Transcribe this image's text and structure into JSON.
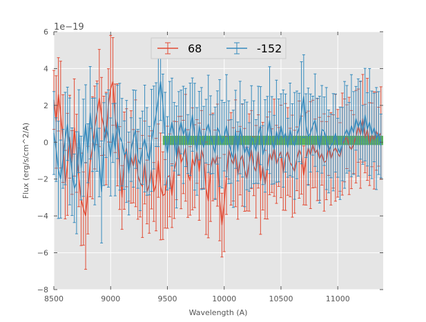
{
  "chart_data": {
    "type": "line",
    "title": "",
    "xlabel": "Wavelength (A)",
    "ylabel": "Flux (erg/s/cm^2/A)",
    "offset_text": "1e−19",
    "xlim": [
      8500,
      11400
    ],
    "ylim": [
      -8,
      6
    ],
    "xticks": [
      8500,
      9000,
      9500,
      10000,
      10500,
      11000
    ],
    "xtick_labels": [
      "8500",
      "9000",
      "9500",
      "10000",
      "10500",
      "11000"
    ],
    "yticks": [
      -8,
      -6,
      -4,
      -2,
      0,
      2,
      4,
      6
    ],
    "ytick_labels": [
      "−8",
      "−6",
      "−4",
      "−2",
      "0",
      "2",
      "4",
      "6"
    ],
    "grid": true,
    "legend_position": "top-center",
    "colors": {
      "background": "#e5e5e5",
      "grid": "#ffffff",
      "band": "#2ca02c",
      "series_68": "#e24a33",
      "series_m152": "#348abd"
    },
    "band": {
      "x_start": 9460,
      "x_end": 11400,
      "y_low": -0.15,
      "y_high": 0.35,
      "label": ""
    },
    "series": [
      {
        "name": "68",
        "color": "#e24a33",
        "x_start": 8500,
        "x_step": 20,
        "values": [
          2.3,
          1.1,
          2.6,
          1.5,
          0.2,
          -2.3,
          -1.2,
          0.3,
          -1.1,
          0.8,
          -0.6,
          -1.9,
          -3.1,
          -3.6,
          -4.0,
          -2.6,
          -1.1,
          -0.3,
          0.8,
          1.6,
          2.4,
          1.4,
          0.9,
          0.2,
          2.0,
          2.9,
          3.3,
          1.3,
          0.4,
          -1.4,
          -3.0,
          -1.0,
          -0.3,
          -1.6,
          -0.8,
          -1.3,
          -0.6,
          -1.8,
          -2.2,
          -2.4,
          -1.1,
          -2.7,
          -2.3,
          -1.5,
          -2.7,
          -2.3,
          -1.0,
          -2.4,
          -2.9,
          -2.8,
          -1.9,
          -1.8,
          -2.9,
          -1.5,
          -1.0,
          -0.2,
          -1.1,
          -0.8,
          -0.3,
          -1.7,
          -2.1,
          -0.9,
          -1.3,
          -0.5,
          -1.6,
          -0.4,
          -0.9,
          -2.5,
          -3.2,
          -1.4,
          -0.8,
          -1.2,
          -0.7,
          -3.1,
          -4.5,
          -3.3,
          -1.8,
          -0.4,
          -0.9,
          -1.2,
          -0.6,
          -1.8,
          -1.0,
          -0.7,
          -1.5,
          -2.0,
          -1.1,
          -0.4,
          -1.3,
          -1.6,
          -0.5,
          -2.1,
          -1.3,
          -2.3,
          -1.4,
          -0.6,
          -1.0,
          -0.3,
          -1.2,
          -0.8,
          -0.5,
          -1.7,
          -0.8,
          -0.5,
          -1.1,
          -1.3,
          -1.6,
          -0.9,
          -0.4,
          -0.7,
          -1.8,
          -0.9,
          -0.3,
          -0.7,
          -0.1,
          -0.6,
          -0.4,
          -0.9,
          -0.6,
          -1.1,
          -1.0,
          -0.2,
          -0.9,
          -0.5,
          -0.3,
          -0.6,
          -0.8,
          -0.1,
          0.1,
          0.3,
          -0.2,
          -0.4,
          -0.1,
          0.3,
          0.9,
          0.4,
          1.3,
          0.2,
          0.7,
          -0.1,
          0.4,
          0.1,
          0.6,
          0.3,
          0.5
        ]
      },
      {
        "name": "-152",
        "color": "#348abd",
        "x_start": 8500,
        "x_step": 20,
        "values": [
          0.5,
          -0.4,
          -1.5,
          -2.0,
          -0.9,
          0.2,
          1.0,
          -0.5,
          -1.6,
          -2.5,
          -2.2,
          0.6,
          -1.4,
          -0.3,
          1.0,
          -0.6,
          1.6,
          0.4,
          -0.5,
          0.8,
          -1.1,
          -2.7,
          -0.1,
          0.9,
          0.2,
          -0.8,
          0.5,
          -0.4,
          1.1,
          0.3,
          0.0,
          -0.7,
          -0.5,
          -1.7,
          -0.4,
          0.2,
          0.7,
          -0.9,
          -1.2,
          -0.3,
          0.2,
          -0.5,
          -1.0,
          0.1,
          0.8,
          1.5,
          2.4,
          3.3,
          2.1,
          0.2,
          -0.6,
          0.4,
          1.1,
          0.3,
          -0.8,
          0.5,
          1.1,
          0.4,
          0.8,
          -0.1,
          0.7,
          1.5,
          0.3,
          -0.5,
          0.9,
          0.2,
          -0.3,
          0.6,
          1.0,
          0.4,
          -0.1,
          -0.6,
          0.8,
          0.5,
          -0.1,
          0.3,
          0.9,
          0.0,
          -0.5,
          -0.9,
          0.7,
          -0.5,
          0.8,
          0.1,
          -0.6,
          -0.2,
          -0.8,
          0.3,
          0.0,
          -0.5,
          0.4,
          0.9,
          -0.7,
          -0.2,
          0.5,
          1.2,
          0.1,
          -0.4,
          0.6,
          0.1,
          0.9,
          0.2,
          0.5,
          -0.3,
          0.7,
          0.1,
          -0.2,
          0.4,
          0.8,
          1.6,
          2.5,
          0.9,
          0.3,
          0.5,
          0.9,
          1.2,
          0.4,
          -0.4,
          0.7,
          0.6,
          0.2,
          -0.5,
          -0.2,
          0.0,
          0.5,
          -0.3,
          -0.6,
          -0.1,
          0.4,
          0.7,
          0.3,
          0.9,
          0.5,
          1.3,
          0.8,
          1.2,
          0.4,
          1.5,
          0.7,
          1.1,
          0.4,
          0.8,
          0.2,
          0.5,
          -0.2
        ]
      }
    ]
  }
}
